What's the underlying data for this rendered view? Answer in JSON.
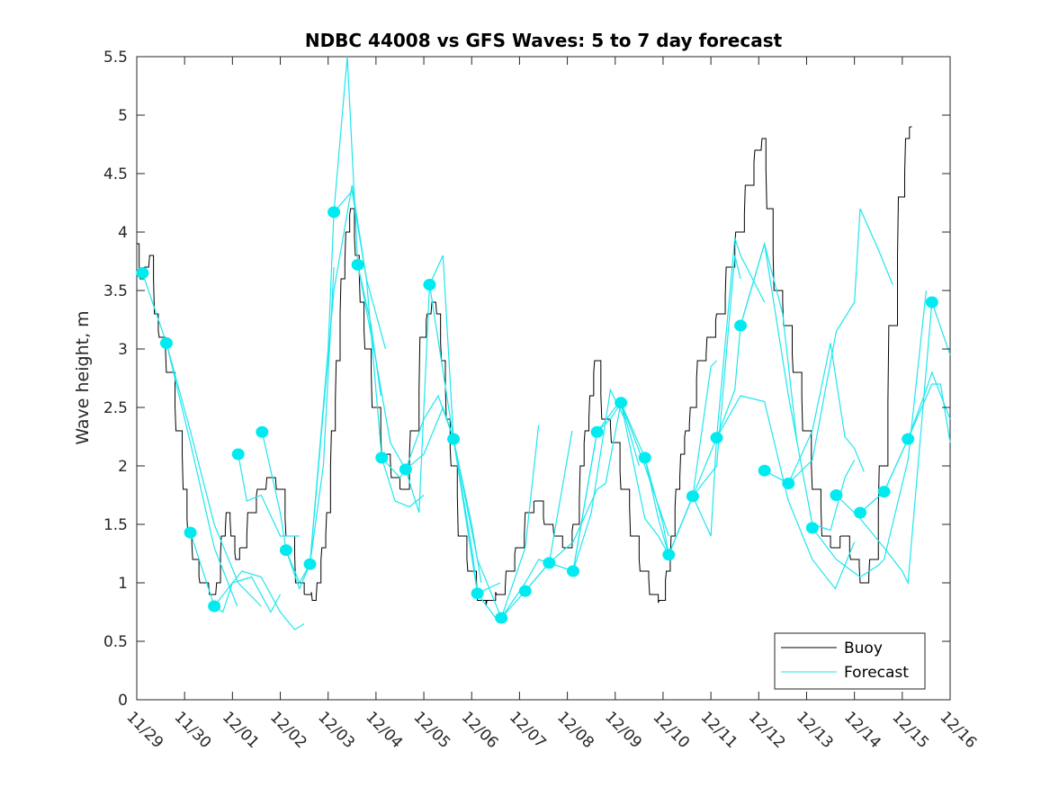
{
  "chart_data": {
    "type": "line",
    "title": "NDBC 44008 vs GFS Waves: 5 to 7 day forecast",
    "xlabel": "",
    "ylabel": "Wave height, m",
    "ylim": [
      0,
      5.5
    ],
    "xlim_days": [
      0,
      17
    ],
    "yticks": [
      "0",
      "0.5",
      "1",
      "1.5",
      "2",
      "2.5",
      "3",
      "3.5",
      "4",
      "4.5",
      "5",
      "5.5"
    ],
    "ytick_values": [
      0,
      0.5,
      1,
      1.5,
      2,
      2.5,
      3,
      3.5,
      4,
      4.5,
      5,
      5.5
    ],
    "xticks": [
      "11/29",
      "11/30",
      "12/01",
      "12/02",
      "12/03",
      "12/04",
      "12/05",
      "12/06",
      "12/07",
      "12/08",
      "12/09",
      "12/10",
      "12/11",
      "12/12",
      "12/13",
      "12/14",
      "12/15",
      "12/16"
    ],
    "grid": false,
    "legend": {
      "placement": "bottom-right",
      "entries": [
        {
          "label": "Buoy",
          "color": "#000000"
        },
        {
          "label": "Forecast",
          "color": "#00e5ee"
        }
      ]
    },
    "colors": {
      "buoy": "#000000",
      "forecast": "#1ee6ee",
      "marker": "#00ebf0"
    },
    "series": [
      {
        "name": "Buoy",
        "x": [
          0,
          0.1,
          0.2,
          0.3,
          0.4,
          0.5,
          0.7,
          0.9,
          1.0,
          1.1,
          1.2,
          1.4,
          1.6,
          1.7,
          1.8,
          1.9,
          2.0,
          2.1,
          2.2,
          2.4,
          2.6,
          2.8,
          3.0,
          3.2,
          3.4,
          3.6,
          3.7,
          3.8,
          3.9,
          4.0,
          4.1,
          4.2,
          4.3,
          4.4,
          4.5,
          4.6,
          4.7,
          4.8,
          5.0,
          5.2,
          5.4,
          5.6,
          5.8,
          6.0,
          6.1,
          6.2,
          6.3,
          6.4,
          6.5,
          6.6,
          6.8,
          7.0,
          7.2,
          7.4,
          7.6,
          7.8,
          8.0,
          8.2,
          8.4,
          8.6,
          8.8,
          9.0,
          9.2,
          9.3,
          9.4,
          9.5,
          9.6,
          9.8,
          10.0,
          10.2,
          10.4,
          10.6,
          10.8,
          11.0,
          11.1,
          11.2,
          11.3,
          11.4,
          11.5,
          11.6,
          11.8,
          12.0,
          12.2,
          12.4,
          12.6,
          12.8,
          13.0,
          13.1,
          13.2,
          13.4,
          13.6,
          13.8,
          14.0,
          14.2,
          14.4,
          14.6,
          14.8,
          15.0,
          15.2,
          15.4,
          15.6,
          15.8,
          16.0,
          16.1,
          16.2
        ],
        "y": [
          3.9,
          3.6,
          3.7,
          3.8,
          3.3,
          3.1,
          2.8,
          2.3,
          1.8,
          1.4,
          1.2,
          1.0,
          0.9,
          1.0,
          1.4,
          1.6,
          1.4,
          1.2,
          1.3,
          1.6,
          1.8,
          1.9,
          1.8,
          1.4,
          1.0,
          0.9,
          0.85,
          1.0,
          1.3,
          1.6,
          2.3,
          2.9,
          3.6,
          4.0,
          4.2,
          3.8,
          3.4,
          3.0,
          2.5,
          2.1,
          1.9,
          1.8,
          2.3,
          3.1,
          3.3,
          3.4,
          3.3,
          2.9,
          2.4,
          2.0,
          1.4,
          1.1,
          0.85,
          0.85,
          0.9,
          1.1,
          1.3,
          1.6,
          1.7,
          1.5,
          1.4,
          1.3,
          1.5,
          2.0,
          2.3,
          2.6,
          2.9,
          2.4,
          2.2,
          1.8,
          1.4,
          1.1,
          0.9,
          0.85,
          1.1,
          1.4,
          1.8,
          2.1,
          2.3,
          2.5,
          2.9,
          3.1,
          3.3,
          3.7,
          4.0,
          4.4,
          4.7,
          4.8,
          4.2,
          3.5,
          3.2,
          2.8,
          2.3,
          1.8,
          1.4,
          1.3,
          1.4,
          1.2,
          1.0,
          1.2,
          2.0,
          3.2,
          4.3,
          4.8,
          4.9
        ]
      },
      {
        "name": "Forecast",
        "runs": [
          {
            "x": [
              0.12,
              0.62,
              1.12,
              1.62,
              2.1
            ],
            "y": [
              3.65,
              3.05,
              2.2,
              1.3,
              0.8
            ]
          },
          {
            "x": [
              0.62,
              1.12,
              1.62,
              2.12,
              2.6
            ],
            "y": [
              3.05,
              2.3,
              1.5,
              1.0,
              0.8
            ]
          },
          {
            "x": [
              1.12,
              1.62,
              1.8,
              2.0,
              2.4,
              2.8,
              3.0
            ],
            "y": [
              1.43,
              0.8,
              0.75,
              1.0,
              1.05,
              0.75,
              0.9
            ]
          },
          {
            "x": [
              1.62,
              2.0,
              2.2,
              2.6,
              3.0,
              3.3,
              3.5
            ],
            "y": [
              0.8,
              1.0,
              1.1,
              1.05,
              0.75,
              0.6,
              0.65
            ]
          },
          {
            "x": [
              2.12,
              2.3,
              2.6,
              3.0,
              3.4
            ],
            "y": [
              2.1,
              1.7,
              1.75,
              1.4,
              1.4
            ]
          },
          {
            "x": [
              2.62,
              3.0,
              3.12,
              3.4,
              3.62,
              3.9,
              4.12
            ],
            "y": [
              2.29,
              1.6,
              1.28,
              1.0,
              1.16,
              2.0,
              3.7
            ]
          },
          {
            "x": [
              3.12,
              3.4,
              3.62,
              4.12,
              4.5,
              4.8,
              5.2
            ],
            "y": [
              1.28,
              0.95,
              1.16,
              3.5,
              4.4,
              3.6,
              3.0
            ]
          },
          {
            "x": [
              3.62,
              4.0,
              4.12,
              4.4,
              4.62,
              4.9,
              5.1
            ],
            "y": [
              1.16,
              3.0,
              4.17,
              5.5,
              3.72,
              3.2,
              2.6
            ]
          },
          {
            "x": [
              4.12,
              4.5,
              4.8,
              5.12,
              5.4,
              5.7,
              6.0
            ],
            "y": [
              4.17,
              4.35,
              3.6,
              2.07,
              1.7,
              1.65,
              1.75
            ]
          },
          {
            "x": [
              4.62,
              5.0,
              5.3,
              5.62,
              5.9,
              6.12,
              6.4,
              6.62
            ],
            "y": [
              3.72,
              2.9,
              2.2,
              1.97,
              1.6,
              3.55,
              3.8,
              2.23
            ]
          },
          {
            "x": [
              5.12,
              5.5,
              5.62,
              6.0,
              6.3,
              6.62,
              7.0,
              7.2
            ],
            "y": [
              2.07,
              1.9,
              1.97,
              2.4,
              2.6,
              2.23,
              1.5,
              1.0
            ]
          },
          {
            "x": [
              5.62,
              6.0,
              6.4,
              6.62,
              7.0,
              7.12,
              7.6
            ],
            "y": [
              1.97,
              2.1,
              2.5,
              2.23,
              1.3,
              0.91,
              1.0
            ]
          },
          {
            "x": [
              6.12,
              6.62,
              7.12,
              7.5,
              7.62,
              8.12,
              8.4
            ],
            "y": [
              3.55,
              2.23,
              0.91,
              0.7,
              0.7,
              1.3,
              2.35
            ]
          },
          {
            "x": [
              6.62,
              7.12,
              7.62,
              8.12,
              8.4,
              8.62,
              9.1
            ],
            "y": [
              2.23,
              1.2,
              0.7,
              1.0,
              1.2,
              1.17,
              2.3
            ]
          },
          {
            "x": [
              7.62,
              8.12,
              8.62,
              9.12,
              9.5,
              9.9,
              10.2
            ],
            "y": [
              0.7,
              0.93,
              1.17,
              1.1,
              1.6,
              2.65,
              2.4
            ]
          },
          {
            "x": [
              8.12,
              8.62,
              9.12,
              9.62,
              9.9,
              10.12,
              10.5
            ],
            "y": [
              0.93,
              1.17,
              1.1,
              2.29,
              2.4,
              2.54,
              2.0
            ]
          },
          {
            "x": [
              8.62,
              9.12,
              9.62,
              9.8,
              10.12,
              10.62,
              11.12
            ],
            "y": [
              1.17,
              1.35,
              1.8,
              1.85,
              2.54,
              2.0,
              1.4
            ]
          },
          {
            "x": [
              9.12,
              9.62,
              10.0,
              10.12,
              10.62,
              10.9,
              11.12
            ],
            "y": [
              1.1,
              2.29,
              2.5,
              2.54,
              1.55,
              1.4,
              1.24
            ]
          },
          {
            "x": [
              10.12,
              10.62,
              10.9,
              11.12,
              11.62,
              12.0,
              12.12
            ],
            "y": [
              2.54,
              2.07,
              1.55,
              1.24,
              1.74,
              2.85,
              2.9
            ]
          },
          {
            "x": [
              10.62,
              11.0,
              11.12,
              11.62,
              12.12,
              12.5,
              12.62
            ],
            "y": [
              2.07,
              1.5,
              1.24,
              1.74,
              2.0,
              3.8,
              3.6
            ]
          },
          {
            "x": [
              11.12,
              11.62,
              12.0,
              12.12,
              12.5,
              12.62,
              13.12
            ],
            "y": [
              1.24,
              1.74,
              1.4,
              2.24,
              3.95,
              3.8,
              3.4
            ]
          },
          {
            "x": [
              11.62,
              12.12,
              12.5,
              12.62,
              13.12,
              13.5,
              13.8
            ],
            "y": [
              1.74,
              2.24,
              2.65,
              3.2,
              3.9,
              3.3,
              2.2
            ]
          },
          {
            "x": [
              12.12,
              12.62,
              13.12,
              13.62,
              14.12,
              14.6,
              15.0
            ],
            "y": [
              2.24,
              2.6,
              2.55,
              1.7,
              1.2,
              0.95,
              1.35
            ]
          },
          {
            "x": [
              12.62,
              13.12,
              13.62,
              14.12,
              14.5,
              14.8,
              15.0
            ],
            "y": [
              3.2,
              3.9,
              2.6,
              1.5,
              1.45,
              1.9,
              2.05
            ]
          },
          {
            "x": [
              13.12,
              13.62,
              14.12,
              14.5,
              14.8,
              15.0,
              15.2
            ],
            "y": [
              1.96,
              1.85,
              2.3,
              3.05,
              2.25,
              2.15,
              1.95
            ]
          },
          {
            "x": [
              13.62,
              14.12,
              14.62,
              15.0,
              15.12,
              15.5,
              15.8
            ],
            "y": [
              1.85,
              2.05,
              3.15,
              3.4,
              4.2,
              3.85,
              3.55
            ]
          },
          {
            "x": [
              14.12,
              14.62,
              15.12,
              15.5,
              15.62,
              16.12,
              16.5
            ],
            "y": [
              1.47,
              1.2,
              1.05,
              1.15,
              1.2,
              2.05,
              3.5
            ]
          },
          {
            "x": [
              14.62,
              15.12,
              15.62,
              16.0,
              16.12,
              16.62,
              17.0
            ],
            "y": [
              1.75,
              1.55,
              1.3,
              1.1,
              1.0,
              3.4,
              2.95
            ]
          },
          {
            "x": [
              15.12,
              15.62,
              16.12,
              16.5,
              16.62,
              17.0
            ],
            "y": [
              1.6,
              1.78,
              2.23,
              2.65,
              2.8,
              2.4
            ]
          },
          {
            "x": [
              15.62,
              16.12,
              16.62,
              16.8,
              17.0
            ],
            "y": [
              1.78,
              2.23,
              2.7,
              2.7,
              2.2
            ]
          }
        ]
      },
      {
        "name": "Forecast start markers",
        "x": [
          0.12,
          0.62,
          1.12,
          1.62,
          2.12,
          2.62,
          3.12,
          3.62,
          4.12,
          4.62,
          5.12,
          5.62,
          6.12,
          6.62,
          7.12,
          7.62,
          8.12,
          8.62,
          9.12,
          9.62,
          10.12,
          10.62,
          11.12,
          11.62,
          12.12,
          12.62,
          13.12,
          13.62,
          14.12,
          14.62,
          15.12,
          15.62,
          16.12,
          16.62
        ],
        "y": [
          3.65,
          3.05,
          1.43,
          0.8,
          2.1,
          2.29,
          1.28,
          1.16,
          4.17,
          3.72,
          2.07,
          1.97,
          3.55,
          2.23,
          0.91,
          0.7,
          0.93,
          1.17,
          1.1,
          2.29,
          2.54,
          2.07,
          1.24,
          1.74,
          2.24,
          3.2,
          1.96,
          1.85,
          1.47,
          1.75,
          1.6,
          1.78,
          2.23,
          3.4
        ]
      }
    ]
  }
}
